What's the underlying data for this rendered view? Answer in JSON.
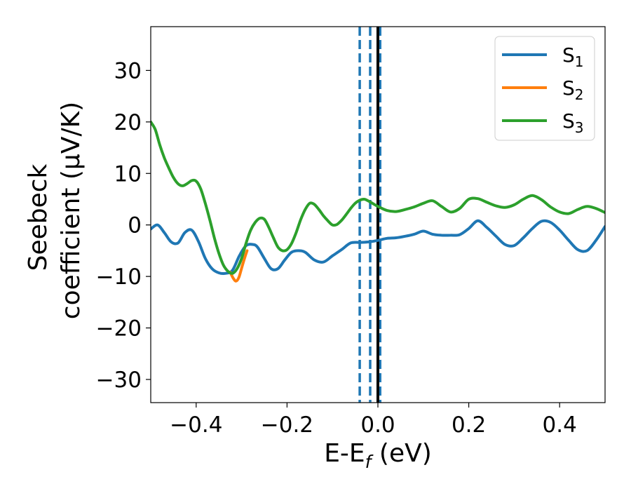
{
  "chart_data": {
    "type": "line",
    "xlabel": "E-E",
    "xlabel_sub": "f",
    "xlabel_unit": " (eV)",
    "ylabel_line1": "Seebeck",
    "ylabel_line2": "coefficient  (μV/K)",
    "xlim": [
      -0.5,
      0.5
    ],
    "ylim": [
      -34.5,
      38.5
    ],
    "xticks": [
      -0.4,
      -0.2,
      0.0,
      0.2,
      0.4
    ],
    "xtick_labels": [
      "−0.4",
      "−0.2",
      "0.0",
      "0.2",
      "0.4"
    ],
    "yticks": [
      -30,
      -20,
      -10,
      0,
      10,
      20,
      30
    ],
    "ytick_labels": [
      "−30",
      "−20",
      "−10",
      "0",
      "10",
      "20",
      "30"
    ],
    "legend": {
      "placement": "top-right",
      "entries": [
        {
          "label": "S",
          "sub": "1",
          "color": "#1f77b4"
        },
        {
          "label": "S",
          "sub": "2",
          "color": "#ff7f0e"
        },
        {
          "label": "S",
          "sub": "3",
          "color": "#2ca02c"
        }
      ]
    },
    "vlines": [
      {
        "x": -0.04,
        "style": "dashed",
        "color": "#1f77b4"
      },
      {
        "x": -0.017,
        "style": "dashed",
        "color": "#1f77b4"
      },
      {
        "x": 0.005,
        "style": "dashed",
        "color": "#1f77b4"
      },
      {
        "x": 0.0,
        "style": "solid",
        "color": "#000000"
      }
    ],
    "series": [
      {
        "name": "S1",
        "color": "#1f77b4",
        "x": [
          -0.5,
          -0.485,
          -0.47,
          -0.455,
          -0.44,
          -0.425,
          -0.41,
          -0.395,
          -0.38,
          -0.365,
          -0.35,
          -0.335,
          -0.32,
          -0.305,
          -0.29,
          -0.275,
          -0.265,
          -0.25,
          -0.235,
          -0.22,
          -0.205,
          -0.19,
          -0.175,
          -0.16,
          -0.14,
          -0.12,
          -0.1,
          -0.08,
          -0.06,
          -0.04,
          -0.02,
          0.0,
          0.02,
          0.04,
          0.06,
          0.08,
          0.1,
          0.12,
          0.14,
          0.16,
          0.18,
          0.2,
          0.22,
          0.24,
          0.26,
          0.28,
          0.3,
          0.32,
          0.34,
          0.36,
          0.38,
          0.4,
          0.42,
          0.44,
          0.46,
          0.48,
          0.5
        ],
        "y": [
          -0.8,
          0.0,
          -1.5,
          -3.3,
          -3.5,
          -1.5,
          -1.0,
          -3.2,
          -6.5,
          -8.5,
          -9.3,
          -9.4,
          -8.8,
          -6.0,
          -4.0,
          -3.8,
          -4.3,
          -6.5,
          -8.5,
          -8.5,
          -6.8,
          -5.3,
          -5.0,
          -5.3,
          -6.8,
          -7.2,
          -6.0,
          -4.8,
          -3.5,
          -3.4,
          -3.3,
          -3.0,
          -2.6,
          -2.5,
          -2.2,
          -1.8,
          -1.2,
          -1.8,
          -2.0,
          -2.0,
          -1.9,
          -0.7,
          0.8,
          -0.5,
          -2.2,
          -3.8,
          -4.0,
          -2.5,
          -0.7,
          0.7,
          0.5,
          -1.0,
          -3.0,
          -4.8,
          -5.0,
          -3.0,
          -0.3
        ]
      },
      {
        "name": "S2",
        "color": "#ff7f0e",
        "x": [
          -0.325,
          -0.318,
          -0.312,
          -0.306,
          -0.3,
          -0.294,
          -0.288
        ],
        "y": [
          -9.2,
          -10.4,
          -10.9,
          -10.2,
          -8.4,
          -6.6,
          -5.0
        ]
      },
      {
        "name": "S3",
        "color": "#2ca02c",
        "x": [
          -0.5,
          -0.49,
          -0.48,
          -0.47,
          -0.46,
          -0.45,
          -0.44,
          -0.43,
          -0.42,
          -0.41,
          -0.4,
          -0.39,
          -0.38,
          -0.37,
          -0.36,
          -0.35,
          -0.34,
          -0.33,
          -0.32,
          -0.31,
          -0.3,
          -0.29,
          -0.28,
          -0.27,
          -0.26,
          -0.25,
          -0.24,
          -0.23,
          -0.22,
          -0.21,
          -0.2,
          -0.19,
          -0.18,
          -0.17,
          -0.16,
          -0.15,
          -0.14,
          -0.13,
          -0.12,
          -0.11,
          -0.1,
          -0.09,
          -0.08,
          -0.07,
          -0.06,
          -0.05,
          -0.04,
          -0.03,
          -0.02,
          -0.01,
          0.0,
          0.02,
          0.04,
          0.06,
          0.08,
          0.1,
          0.12,
          0.14,
          0.16,
          0.18,
          0.2,
          0.22,
          0.24,
          0.26,
          0.28,
          0.3,
          0.32,
          0.34,
          0.36,
          0.38,
          0.4,
          0.42,
          0.44,
          0.46,
          0.48,
          0.5
        ],
        "y": [
          20.0,
          18.5,
          15.5,
          13.0,
          11.0,
          9.2,
          8.0,
          7.6,
          8.0,
          8.6,
          8.5,
          7.0,
          4.2,
          1.0,
          -2.5,
          -5.5,
          -7.8,
          -9.0,
          -9.4,
          -8.5,
          -6.5,
          -3.5,
          -1.0,
          0.5,
          1.3,
          1.1,
          -0.5,
          -2.5,
          -4.3,
          -5.0,
          -4.8,
          -3.6,
          -1.5,
          1.0,
          3.0,
          4.2,
          4.0,
          3.0,
          1.8,
          0.8,
          0.0,
          0.1,
          0.9,
          2.0,
          3.2,
          4.2,
          4.8,
          5.0,
          4.6,
          4.1,
          3.6,
          2.8,
          2.6,
          3.0,
          3.5,
          4.2,
          4.7,
          3.6,
          2.5,
          3.2,
          5.0,
          5.1,
          4.4,
          3.7,
          3.4,
          3.9,
          5.0,
          5.7,
          4.9,
          3.5,
          2.5,
          2.2,
          3.0,
          3.6,
          3.2,
          2.4
        ]
      }
    ]
  }
}
